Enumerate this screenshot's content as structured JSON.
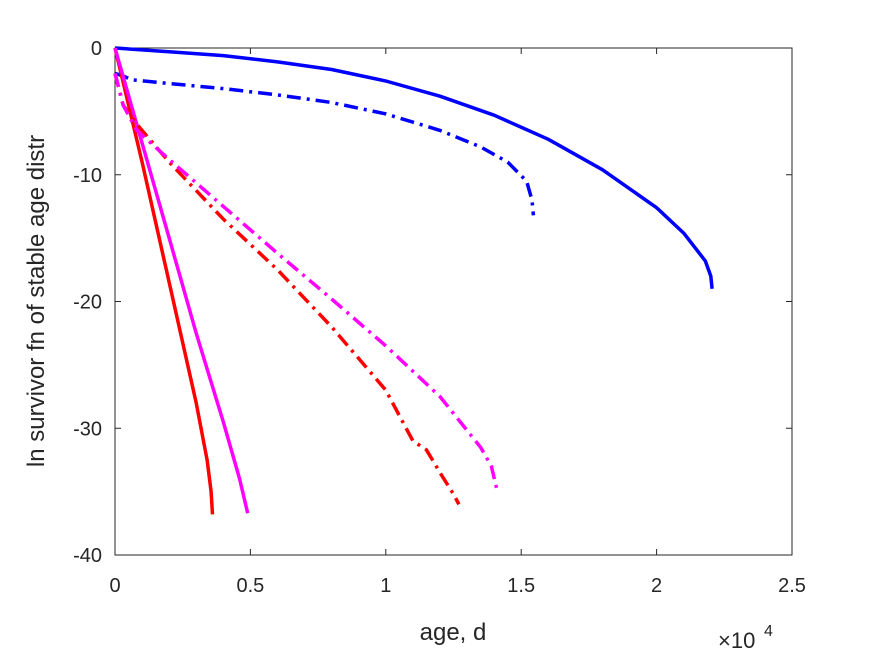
{
  "chart_data": {
    "type": "line",
    "title": "",
    "xlabel": "age, d",
    "ylabel": "ln survivor fn of stable age distr",
    "x_exponent_label": "×10",
    "x_exponent_power": "4",
    "xlim": [
      0,
      25000
    ],
    "ylim": [
      -40,
      0
    ],
    "x_ticks": [
      0,
      5000,
      10000,
      15000,
      20000,
      25000
    ],
    "x_tick_labels": [
      "0",
      "0.5",
      "1",
      "1.5",
      "2",
      "2.5"
    ],
    "y_ticks": [
      0,
      -10,
      -20,
      -30,
      -40
    ],
    "y_tick_labels": [
      "0",
      "-10",
      "-20",
      "-30",
      "-40"
    ],
    "grid": false,
    "series": [
      {
        "color": "#0000ff",
        "style": "solid",
        "points": [
          [
            0,
            0
          ],
          [
            2000,
            -0.3
          ],
          [
            4000,
            -0.6
          ],
          [
            6000,
            -1.1
          ],
          [
            8000,
            -1.7
          ],
          [
            10000,
            -2.6
          ],
          [
            12000,
            -3.8
          ],
          [
            14000,
            -5.3
          ],
          [
            16000,
            -7.2
          ],
          [
            18000,
            -9.6
          ],
          [
            20000,
            -12.6
          ],
          [
            21000,
            -14.6
          ],
          [
            21800,
            -16.8
          ],
          [
            22000,
            -18.0
          ],
          [
            22050,
            -19.0
          ]
        ]
      },
      {
        "color": "#0000ff",
        "style": "dashdot",
        "points": [
          [
            0,
            -2.0
          ],
          [
            300,
            -2.2
          ],
          [
            600,
            -2.5
          ],
          [
            2000,
            -2.8
          ],
          [
            4000,
            -3.2
          ],
          [
            6000,
            -3.7
          ],
          [
            8000,
            -4.3
          ],
          [
            10000,
            -5.2
          ],
          [
            12000,
            -6.5
          ],
          [
            13500,
            -7.8
          ],
          [
            14500,
            -9.0
          ],
          [
            15200,
            -10.5
          ],
          [
            15400,
            -12.0
          ],
          [
            15450,
            -13.2
          ]
        ]
      },
      {
        "color": "#ff0000",
        "style": "solid",
        "points": [
          [
            0,
            0
          ],
          [
            1000,
            -9
          ],
          [
            2000,
            -18.5
          ],
          [
            3000,
            -28
          ],
          [
            3400,
            -32.5
          ],
          [
            3550,
            -35
          ],
          [
            3600,
            -36.8
          ]
        ]
      },
      {
        "color": "#ff00ff",
        "style": "solid",
        "points": [
          [
            0,
            0
          ],
          [
            1000,
            -7.5
          ],
          [
            2000,
            -15
          ],
          [
            3000,
            -22.5
          ],
          [
            4000,
            -29.5
          ],
          [
            4600,
            -34
          ],
          [
            4900,
            -36.7
          ]
        ]
      },
      {
        "color": "#ff0000",
        "style": "dashdot",
        "points": [
          [
            0,
            -2.0
          ],
          [
            300,
            -4.5
          ],
          [
            800,
            -6.0
          ],
          [
            2000,
            -9.0
          ],
          [
            4000,
            -13.5
          ],
          [
            6000,
            -17.5
          ],
          [
            8000,
            -22.0
          ],
          [
            9000,
            -24.5
          ],
          [
            10000,
            -27.0
          ],
          [
            11000,
            -31.0
          ],
          [
            11500,
            -31.7
          ],
          [
            12000,
            -33.5
          ],
          [
            12500,
            -35.2
          ],
          [
            12700,
            -36.0
          ]
        ]
      },
      {
        "color": "#ff00ff",
        "style": "dashdot",
        "points": [
          [
            0,
            -2.0
          ],
          [
            300,
            -4.5
          ],
          [
            800,
            -6.5
          ],
          [
            2000,
            -8.8
          ],
          [
            4000,
            -12.5
          ],
          [
            6000,
            -16.2
          ],
          [
            8000,
            -19.8
          ],
          [
            10000,
            -23.5
          ],
          [
            12000,
            -27.5
          ],
          [
            13500,
            -31.5
          ],
          [
            13900,
            -33.0
          ],
          [
            14100,
            -34.8
          ]
        ]
      }
    ]
  }
}
